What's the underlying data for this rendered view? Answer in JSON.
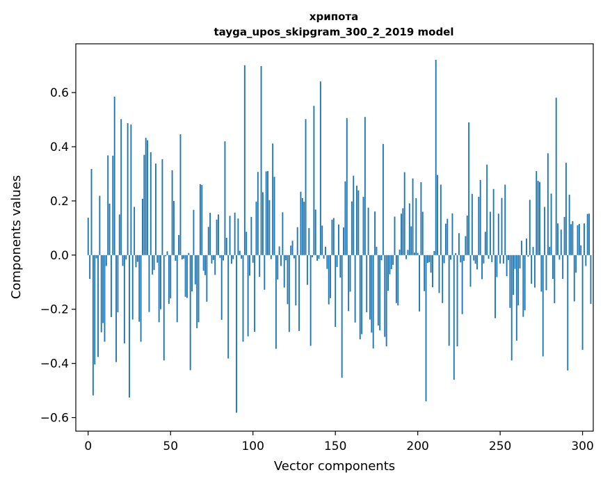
{
  "chart_data": {
    "type": "bar",
    "title": "хрипота",
    "subtitle": "tayga_upos_skipgram_300_2_2019 model",
    "xlabel": "Vector components",
    "ylabel": "Components values",
    "xlim": [
      -7.5,
      306.5
    ],
    "ylim": [
      -0.65,
      0.78
    ],
    "xticks": [
      0,
      50,
      100,
      150,
      200,
      250,
      300
    ],
    "yticks": [
      -0.6,
      -0.4,
      -0.2,
      0.0,
      0.2,
      0.4,
      0.6
    ],
    "ytick_labels": [
      "−0.6",
      "−0.4",
      "−0.2",
      "0.0",
      "0.2",
      "0.4",
      "0.6"
    ],
    "grid": false,
    "bar_color": "#1f77b4",
    "series": [
      {
        "values": [
          0.138,
          -0.088,
          0.318,
          -0.518,
          -0.404,
          -0.012,
          -0.376,
          0.219,
          -0.285,
          -0.251,
          -0.32,
          -0.04,
          0.368,
          0.19,
          -0.229,
          0.367,
          0.585,
          -0.395,
          -0.211,
          0.15,
          0.502,
          -0.04,
          -0.326,
          -0.016,
          0.487,
          -0.526,
          0.482,
          -0.238,
          0.178,
          -0.045,
          -0.025,
          -0.246,
          -0.32,
          0.208,
          0.37,
          0.433,
          0.424,
          -0.21,
          0.38,
          -0.072,
          -0.055,
          0.338,
          -0.028,
          -0.248,
          -0.2,
          0.354,
          -0.389,
          -0.004,
          0.014,
          -0.18,
          -0.16,
          0.313,
          0.2,
          -0.021,
          -0.248,
          0.074,
          0.446,
          -0.016,
          -0.013,
          -0.154,
          -0.158,
          0.008,
          -0.425,
          -0.134,
          0.167,
          -0.108,
          -0.27,
          -0.248,
          0.262,
          0.259,
          -0.058,
          -0.074,
          -0.172,
          0.104,
          0.156,
          -0.031,
          -0.018,
          -0.073,
          0.131,
          0.15,
          -0.01,
          -0.239,
          -0.02,
          0.42,
          0.064,
          -0.382,
          0.145,
          -0.032,
          -0.015,
          0.157,
          -0.582,
          0.135,
          0.016,
          -0.013,
          -0.32,
          0.701,
          0.086,
          -0.3,
          -0.076,
          0.141,
          -0.028,
          -0.283,
          0.197,
          0.307,
          -0.08,
          0.698,
          0.232,
          -0.128,
          0.309,
          0.31,
          0.203,
          -0.015,
          0.412,
          0.289,
          -0.346,
          -0.09,
          0.032,
          -0.04,
          0.158,
          -0.12,
          -0.019,
          -0.181,
          -0.284,
          0.035,
          0.053,
          -0.012,
          -0.186,
          0.103,
          -0.28,
          0.234,
          0.21,
          0.197,
          0.502,
          -0.11,
          0.1,
          -0.335,
          -0.008,
          0.551,
          0.168,
          -0.021,
          -0.014,
          0.641,
          0.109,
          -0.013,
          0.031,
          -0.051,
          -0.182,
          -0.159,
          0.131,
          0.137,
          -0.265,
          -0.044,
          0.113,
          -0.083,
          -0.453,
          0.102,
          0.272,
          0.506,
          -0.207,
          -0.135,
          0.198,
          0.293,
          -0.249,
          0.256,
          0.239,
          -0.311,
          -0.292,
          0.215,
          0.51,
          -0.211,
          0.175,
          -0.238,
          -0.286,
          -0.345,
          0.161,
          0.031,
          -0.26,
          -0.278,
          -0.019,
          0.41,
          -0.302,
          -0.337,
          -0.132,
          -0.071,
          -0.052,
          -0.036,
          0.142,
          -0.177,
          -0.186,
          0.02,
          0.153,
          0.173,
          0.306,
          -0.015,
          0.019,
          0.191,
          0.106,
          0.283,
          0.009,
          0.21,
          0.008,
          -0.208,
          0.269,
          0.16,
          -0.133,
          -0.54,
          -0.029,
          -0.026,
          -0.065,
          -0.119,
          0.015,
          0.721,
          0.296,
          -0.14,
          0.26,
          -0.177,
          -0.03,
          0.116,
          0.134,
          -0.335,
          -0.017,
          0.154,
          -0.46,
          0.007,
          -0.337,
          0.081,
          -0.027,
          -0.218,
          -0.021,
          0.07,
          0.146,
          0.49,
          -0.117,
          0.226,
          -0.02,
          -0.032,
          -0.053,
          0.215,
          0.277,
          -0.089,
          -0.031,
          0.086,
          0.334,
          -0.014,
          0.16,
          -0.026,
          0.244,
          -0.233,
          -0.081,
          0.153,
          -0.031,
          0.211,
          -0.031,
          0.26,
          -0.078,
          -0.018,
          -0.195,
          -0.389,
          -0.147,
          -0.051,
          -0.316,
          -0.186,
          -0.049,
          0.053,
          -0.228,
          -0.204,
          0.061,
          -0.006,
          0.204,
          -0.106,
          0.03,
          -0.12,
          0.31,
          0.274,
          0.27,
          -0.135,
          -0.374,
          0.178,
          -0.13,
          0.376,
          0.03,
          0.227,
          -0.088,
          -0.178,
          0.581,
          0.117,
          -0.017,
          0.094,
          -0.088,
          0.141,
          0.341,
          -0.426,
          0.223,
          0.114,
          0.125,
          -0.171,
          -0.065,
          0.11,
          0.115,
          0.036,
          -0.35,
          0.117,
          -0.04,
          0.152,
          0.153,
          -0.18
        ]
      }
    ]
  }
}
